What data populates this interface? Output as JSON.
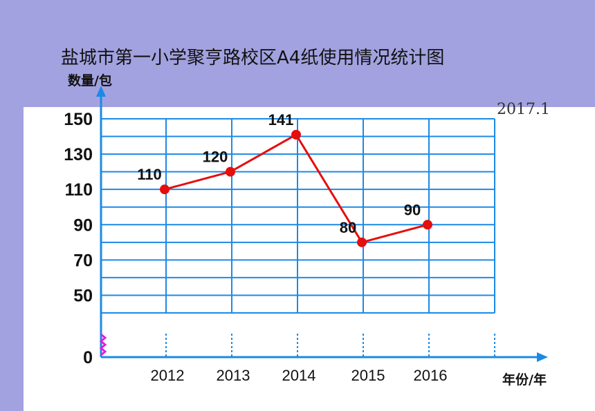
{
  "date_note": "2017.1",
  "chart_data": {
    "type": "line",
    "title": "盐城市第一小学聚亨路校区A4纸使用情况统计图",
    "ylabel": "数量/包",
    "xlabel": "年份/年",
    "categories": [
      "2012",
      "2013",
      "2014",
      "2015",
      "2016"
    ],
    "values": [
      110,
      120,
      141,
      80,
      90
    ],
    "y_ticks": [
      "150",
      "130",
      "110",
      "90",
      "70",
      "50",
      "0"
    ],
    "ylim": [
      40,
      150
    ],
    "axis_break": true,
    "grid": true,
    "colors": {
      "line": "#e60d0d",
      "grid": "#1b8ae6",
      "axis": "#1b8ae6",
      "break": "#e020e0"
    }
  }
}
